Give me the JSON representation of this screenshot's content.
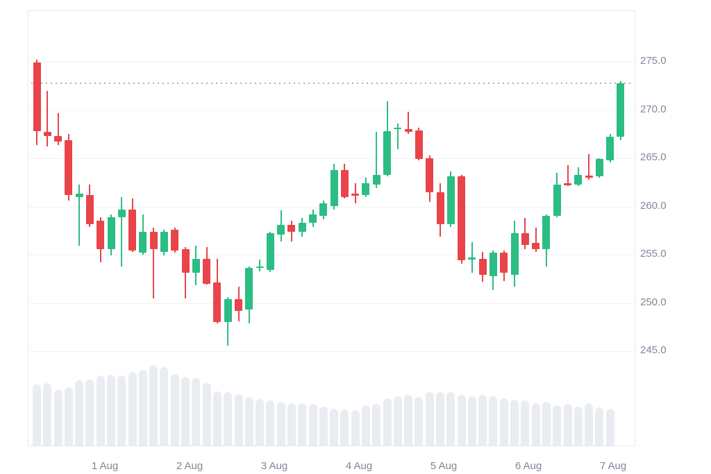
{
  "chart_data": {
    "type": "candlestick",
    "title": "",
    "x_labels": [
      "1 Aug",
      "2 Aug",
      "3 Aug",
      "4 Aug",
      "5 Aug",
      "6 Aug",
      "7 Aug"
    ],
    "y_ticks": [
      "275.0",
      "270.0",
      "265.0",
      "260.0",
      "255.0",
      "250.0",
      "245.0"
    ],
    "y_axis_side": "right",
    "ylim": [
      245.0,
      275.0
    ],
    "grid": true,
    "price_line": 272.8,
    "candles": [
      {
        "o": 274.9,
        "h": 275.2,
        "l": 266.4,
        "c": 267.8
      },
      {
        "o": 267.7,
        "h": 272.0,
        "l": 266.2,
        "c": 267.3
      },
      {
        "o": 267.3,
        "h": 269.7,
        "l": 266.4,
        "c": 266.7
      },
      {
        "o": 266.9,
        "h": 267.5,
        "l": 260.6,
        "c": 261.2
      },
      {
        "o": 261.0,
        "h": 262.3,
        "l": 255.9,
        "c": 261.3
      },
      {
        "o": 261.2,
        "h": 262.3,
        "l": 257.9,
        "c": 258.2
      },
      {
        "o": 258.5,
        "h": 258.9,
        "l": 254.2,
        "c": 255.6
      },
      {
        "o": 255.6,
        "h": 259.2,
        "l": 254.9,
        "c": 258.9
      },
      {
        "o": 258.9,
        "h": 261.0,
        "l": 253.8,
        "c": 259.7
      },
      {
        "o": 259.7,
        "h": 260.8,
        "l": 255.3,
        "c": 255.4
      },
      {
        "o": 255.2,
        "h": 259.2,
        "l": 255.0,
        "c": 257.4
      },
      {
        "o": 257.4,
        "h": 257.8,
        "l": 250.5,
        "c": 255.6
      },
      {
        "o": 255.3,
        "h": 257.6,
        "l": 254.9,
        "c": 257.4
      },
      {
        "o": 257.6,
        "h": 257.8,
        "l": 255.2,
        "c": 255.4
      },
      {
        "o": 255.6,
        "h": 255.8,
        "l": 250.5,
        "c": 253.1
      },
      {
        "o": 253.1,
        "h": 255.9,
        "l": 251.8,
        "c": 254.6
      },
      {
        "o": 254.6,
        "h": 255.8,
        "l": 251.9,
        "c": 252.0
      },
      {
        "o": 252.1,
        "h": 254.6,
        "l": 247.9,
        "c": 248.0
      },
      {
        "o": 248.0,
        "h": 250.6,
        "l": 245.6,
        "c": 250.4
      },
      {
        "o": 250.4,
        "h": 251.7,
        "l": 248.1,
        "c": 249.2
      },
      {
        "o": 249.3,
        "h": 253.8,
        "l": 247.9,
        "c": 253.6
      },
      {
        "o": 253.6,
        "h": 254.5,
        "l": 253.3,
        "c": 253.8
      },
      {
        "o": 253.4,
        "h": 257.4,
        "l": 253.2,
        "c": 257.2
      },
      {
        "o": 257.1,
        "h": 259.6,
        "l": 256.4,
        "c": 258.1
      },
      {
        "o": 258.1,
        "h": 258.5,
        "l": 256.4,
        "c": 257.4
      },
      {
        "o": 257.4,
        "h": 258.8,
        "l": 256.9,
        "c": 258.3
      },
      {
        "o": 258.3,
        "h": 259.7,
        "l": 257.9,
        "c": 259.2
      },
      {
        "o": 259.0,
        "h": 260.6,
        "l": 258.7,
        "c": 260.3
      },
      {
        "o": 260.0,
        "h": 264.4,
        "l": 259.7,
        "c": 263.8
      },
      {
        "o": 263.8,
        "h": 264.4,
        "l": 260.8,
        "c": 261.0
      },
      {
        "o": 261.3,
        "h": 262.4,
        "l": 260.3,
        "c": 261.2
      },
      {
        "o": 261.2,
        "h": 263.0,
        "l": 261.0,
        "c": 262.4
      },
      {
        "o": 262.3,
        "h": 267.7,
        "l": 261.9,
        "c": 263.3
      },
      {
        "o": 263.3,
        "h": 270.9,
        "l": 263.1,
        "c": 267.8
      },
      {
        "o": 268.0,
        "h": 268.6,
        "l": 265.9,
        "c": 268.2
      },
      {
        "o": 268.0,
        "h": 269.8,
        "l": 267.5,
        "c": 267.7
      },
      {
        "o": 267.9,
        "h": 268.2,
        "l": 264.8,
        "c": 264.9
      },
      {
        "o": 265.0,
        "h": 265.3,
        "l": 260.5,
        "c": 261.5
      },
      {
        "o": 261.5,
        "h": 262.4,
        "l": 256.9,
        "c": 258.2
      },
      {
        "o": 258.2,
        "h": 263.6,
        "l": 257.9,
        "c": 263.1
      },
      {
        "o": 263.1,
        "h": 263.3,
        "l": 254.1,
        "c": 254.4
      },
      {
        "o": 254.6,
        "h": 256.3,
        "l": 253.1,
        "c": 254.7
      },
      {
        "o": 254.6,
        "h": 255.3,
        "l": 252.2,
        "c": 252.9
      },
      {
        "o": 252.8,
        "h": 255.4,
        "l": 251.3,
        "c": 255.2
      },
      {
        "o": 255.2,
        "h": 255.4,
        "l": 252.3,
        "c": 253.1
      },
      {
        "o": 252.9,
        "h": 258.5,
        "l": 251.7,
        "c": 257.2
      },
      {
        "o": 257.2,
        "h": 258.8,
        "l": 255.6,
        "c": 256.0
      },
      {
        "o": 256.2,
        "h": 257.8,
        "l": 255.3,
        "c": 255.6
      },
      {
        "o": 255.6,
        "h": 259.2,
        "l": 253.8,
        "c": 259.0
      },
      {
        "o": 259.0,
        "h": 263.5,
        "l": 258.9,
        "c": 262.3
      },
      {
        "o": 262.4,
        "h": 264.3,
        "l": 262.1,
        "c": 262.3
      },
      {
        "o": 262.3,
        "h": 264.1,
        "l": 262.1,
        "c": 263.3
      },
      {
        "o": 263.2,
        "h": 265.4,
        "l": 262.8,
        "c": 263.1
      },
      {
        "o": 263.1,
        "h": 265.0,
        "l": 263.0,
        "c": 264.9
      },
      {
        "o": 264.8,
        "h": 267.5,
        "l": 264.6,
        "c": 267.2
      },
      {
        "o": 267.2,
        "h": 273.0,
        "l": 266.9,
        "c": 272.8
      }
    ],
    "volume_rel": [
      0.76,
      0.78,
      0.69,
      0.72,
      0.81,
      0.82,
      0.87,
      0.88,
      0.87,
      0.91,
      0.94,
      1.0,
      0.97,
      0.89,
      0.85,
      0.84,
      0.78,
      0.67,
      0.66,
      0.64,
      0.6,
      0.58,
      0.56,
      0.54,
      0.53,
      0.53,
      0.52,
      0.48,
      0.46,
      0.45,
      0.44,
      0.5,
      0.52,
      0.59,
      0.61,
      0.63,
      0.6,
      0.66,
      0.66,
      0.66,
      0.63,
      0.61,
      0.63,
      0.61,
      0.59,
      0.57,
      0.56,
      0.53,
      0.54,
      0.5,
      0.52,
      0.48,
      0.53,
      0.47,
      0.46,
      0
    ],
    "colors": {
      "up": "#2bbd84",
      "down": "#e8444a",
      "grid": "#f1f2f4",
      "frame": "#e7e9eb",
      "volume": "#e9ecf1",
      "price_line": "#a9b0ba",
      "axis_text": "#7f8796"
    }
  }
}
